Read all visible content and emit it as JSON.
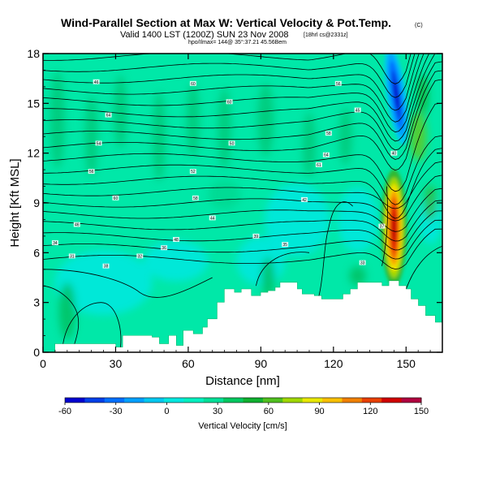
{
  "chart_data": {
    "type": "heatmap",
    "title": "Wind-Parallel Section at Max W: Vertical Velocity & Pot.Temp.",
    "title_mark": "(C)",
    "subtitle": "Valid 1400 LST (1200Z) SUN 23 Nov 2008",
    "subtitle_note": "[18hrl cs@2331z]",
    "small_note": "hpo/Ilmax= 144@ 35°:37.21 45.56Bem",
    "xlabel": "Distance [nm]",
    "ylabel": "Height [Kft MSL]",
    "xlim": [
      0,
      165
    ],
    "ylim": [
      0,
      18
    ],
    "xticks": [
      0,
      30,
      60,
      90,
      120,
      150
    ],
    "yticks": [
      0,
      3,
      6,
      9,
      12,
      15,
      18
    ],
    "colorbar": {
      "label": "Vertical Velocity [cm/s]",
      "ticks": [
        -60,
        -30,
        0,
        30,
        60,
        90,
        120,
        150
      ],
      "colors": [
        "#0000d0",
        "#0040e8",
        "#0070ff",
        "#00a0ff",
        "#00c8f0",
        "#00e8e0",
        "#00f0c0",
        "#00e098",
        "#00c860",
        "#10b030",
        "#50c020",
        "#a0d800",
        "#e8e800",
        "#f8c000",
        "#f08000",
        "#e84000",
        "#d00000",
        "#b00040"
      ]
    },
    "terrain_height_kft": [
      [
        0,
        0
      ],
      [
        5,
        0.5
      ],
      [
        18,
        0.5
      ],
      [
        30,
        0.3
      ],
      [
        33,
        1
      ],
      [
        45,
        0.9
      ],
      [
        48,
        0.5
      ],
      [
        52,
        1
      ],
      [
        55,
        0.4
      ],
      [
        58,
        1.3
      ],
      [
        62,
        1.1
      ],
      [
        66,
        1.5
      ],
      [
        68,
        2
      ],
      [
        72,
        3
      ],
      [
        75,
        3.8
      ],
      [
        79,
        3.6
      ],
      [
        82,
        3.8
      ],
      [
        86,
        3.4
      ],
      [
        90,
        3.6
      ],
      [
        93,
        3.7
      ],
      [
        96,
        3.9
      ],
      [
        98,
        4.2
      ],
      [
        102,
        4.2
      ],
      [
        105,
        3.8
      ],
      [
        107,
        3.5
      ],
      [
        112,
        3.4
      ],
      [
        115,
        3.2
      ],
      [
        120,
        3.2
      ],
      [
        124,
        3.5
      ],
      [
        127,
        3.8
      ],
      [
        130,
        4.2
      ],
      [
        135,
        4.2
      ],
      [
        140,
        4
      ],
      [
        143,
        4.3
      ],
      [
        147,
        4
      ],
      [
        150,
        3.8
      ],
      [
        152,
        3.2
      ],
      [
        155,
        2.8
      ],
      [
        158,
        2.2
      ],
      [
        162,
        1.8
      ],
      [
        165,
        1.5
      ]
    ],
    "updraft": {
      "x_nm": 145,
      "height_kft": 7.5,
      "max_cm_s": 144
    },
    "downdraft": {
      "x_nm": 146,
      "height_kft": 15.5,
      "min_cm_s": -60
    },
    "isentrope_labels": [
      "46",
      "60",
      "56",
      "60",
      "64",
      "45",
      "50",
      "54",
      "58",
      "64",
      "61",
      "52",
      "56",
      "58",
      "60",
      "42",
      "44",
      "46",
      "48",
      "34",
      "36",
      "38",
      "37",
      "39",
      "35",
      "32",
      "33",
      "31",
      "40"
    ]
  }
}
